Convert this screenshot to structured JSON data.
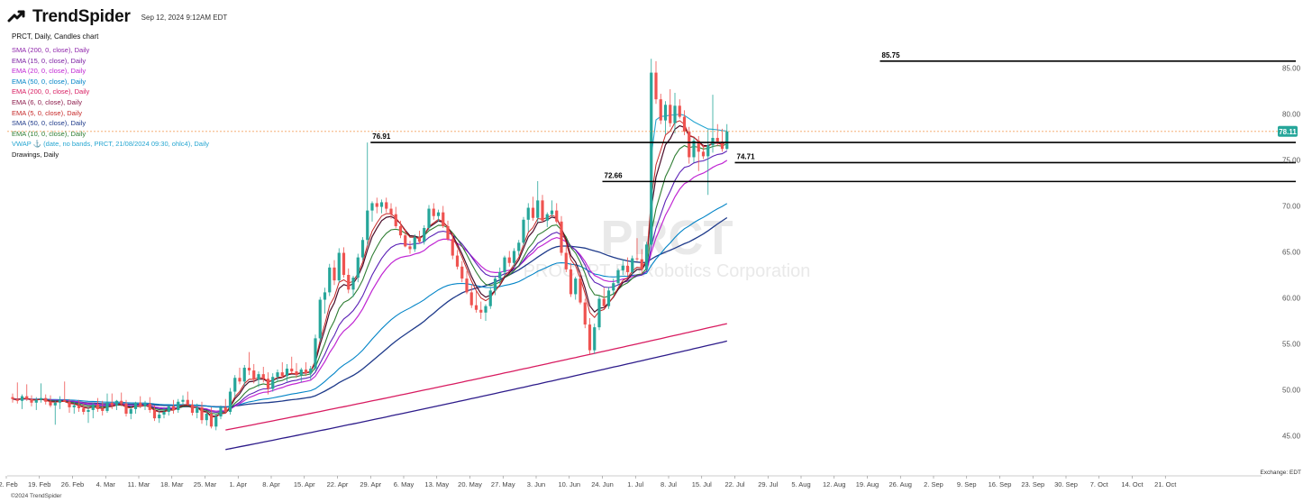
{
  "header": {
    "brand": "TrendSpider",
    "timestamp": "Sep 12, 2024 9:12AM EDT",
    "symbol_line": "PRCT, Daily, Candles chart",
    "drawings_label": "Drawings, Daily",
    "copyright": "©2024 TrendSpider",
    "exchange": "Exchange: EDT"
  },
  "watermark": {
    "ticker": "PRCT",
    "company": "PROCEPT BioRobotics Corporation"
  },
  "indicators": [
    {
      "label": "SMA (200, 0, close), Daily",
      "color": "#8e24aa"
    },
    {
      "label": "EMA (15, 0, close), Daily",
      "color": "#7b1fa2"
    },
    {
      "label": "EMA (20, 0, close), Daily",
      "color": "#c026d3"
    },
    {
      "label": "EMA (50, 0, close), Daily",
      "color": "#0284c7"
    },
    {
      "label": "EMA (200, 0, close), Daily",
      "color": "#d81b60"
    },
    {
      "label": "EMA (6, 0, close), Daily",
      "color": "#8b1a4a"
    },
    {
      "label": "EMA (5, 0, close), Daily",
      "color": "#c62828"
    },
    {
      "label": "SMA (50, 0, close), Daily",
      "color": "#1e3a8a"
    },
    {
      "label": "EMA (10, 0, close), Daily",
      "color": "#2e7d32"
    },
    {
      "label": "VWAP ⚓ (date, no bands, PRCT, 21/08/2024 09:30, ohlc4), Daily",
      "color": "#26a6d1"
    }
  ],
  "chart_data": {
    "type": "candlestick",
    "y_ticks": [
      45,
      50,
      55,
      60,
      65,
      70,
      75,
      80,
      85
    ],
    "y_tick_labels": [
      "45.00",
      "50.00",
      "55.00",
      "60.00",
      "65.00",
      "70.00",
      "75.00",
      "80.00",
      "85.00"
    ],
    "x_ticks": [
      "12. Feb",
      "19. Feb",
      "26. Feb",
      "4. Mar",
      "11. Mar",
      "18. Mar",
      "25. Mar",
      "1. Apr",
      "8. Apr",
      "15. Apr",
      "22. Apr",
      "29. Apr",
      "6. May",
      "13. May",
      "20. May",
      "27. May",
      "3. Jun",
      "10. Jun",
      "24. Jun",
      "1. Jul",
      "8. Jul",
      "15. Jul",
      "22. Jul",
      "29. Jul",
      "5. Aug",
      "12. Aug",
      "19. Aug",
      "26. Aug",
      "2. Sep",
      "9. Sep",
      "16. Sep",
      "23. Sep",
      "30. Sep",
      "7. Oct",
      "14. Oct",
      "21. Oct"
    ],
    "horizontal_levels": [
      {
        "label": "85.75",
        "value": 85.75,
        "from": "19. Aug"
      },
      {
        "label": "76.91",
        "value": 76.91,
        "from": "29. Apr"
      },
      {
        "label": "74.71",
        "value": 74.71,
        "from": "22. Jul"
      },
      {
        "label": "72.66",
        "value": 72.66,
        "from": "24. Jun"
      }
    ],
    "last_price": {
      "label": "78.11",
      "value": 78.11,
      "color": "#26a69a"
    },
    "candles": [
      [
        49.2,
        49.6,
        48.6,
        49.0
      ],
      [
        49.0,
        50.8,
        48.5,
        48.8
      ],
      [
        48.8,
        49.5,
        47.9,
        49.3
      ],
      [
        49.3,
        50.6,
        48.8,
        49.0
      ],
      [
        49.0,
        49.4,
        48.2,
        48.6
      ],
      [
        48.6,
        49.2,
        47.8,
        48.9
      ],
      [
        48.9,
        50.7,
        48.6,
        49.1
      ],
      [
        49.1,
        49.5,
        48.4,
        48.7
      ],
      [
        48.7,
        49.4,
        48.1,
        48.3
      ],
      [
        48.3,
        48.8,
        46.2,
        48.6
      ],
      [
        48.6,
        49.3,
        47.9,
        48.9
      ],
      [
        48.9,
        50.9,
        48.7,
        48.7
      ],
      [
        48.7,
        49.0,
        47.5,
        48.1
      ],
      [
        48.1,
        48.7,
        47.4,
        48.3
      ],
      [
        48.3,
        48.9,
        47.6,
        48.0
      ],
      [
        48.0,
        48.5,
        47.3,
        47.6
      ],
      [
        47.6,
        48.1,
        46.4,
        47.8
      ],
      [
        47.8,
        48.6,
        46.9,
        48.4
      ],
      [
        48.4,
        49.1,
        47.6,
        47.9
      ],
      [
        47.9,
        48.8,
        47.2,
        47.7
      ],
      [
        47.7,
        49.6,
        47.5,
        48.6
      ],
      [
        48.6,
        49.6,
        47.9,
        48.3
      ],
      [
        48.3,
        48.9,
        47.8,
        48.8
      ],
      [
        48.8,
        49.7,
        48.2,
        48.5
      ],
      [
        48.5,
        48.9,
        47.1,
        47.4
      ],
      [
        47.4,
        48.3,
        46.8,
        47.9
      ],
      [
        47.9,
        48.7,
        47.4,
        48.6
      ],
      [
        48.6,
        49.3,
        48.0,
        48.2
      ],
      [
        48.2,
        48.8,
        47.8,
        48.5
      ],
      [
        48.5,
        49.2,
        47.5,
        47.8
      ],
      [
        47.8,
        48.3,
        46.6,
        46.9
      ],
      [
        46.9,
        47.7,
        46.4,
        47.3
      ],
      [
        47.3,
        48.1,
        46.9,
        47.6
      ],
      [
        47.6,
        48.3,
        47.2,
        48.2
      ],
      [
        48.2,
        48.9,
        47.4,
        47.8
      ],
      [
        47.8,
        49.0,
        47.5,
        48.7
      ],
      [
        48.7,
        49.4,
        48.3,
        48.9
      ],
      [
        48.9,
        49.8,
        48.3,
        48.4
      ],
      [
        48.4,
        48.9,
        47.2,
        47.5
      ],
      [
        47.5,
        48.5,
        46.9,
        48.1
      ],
      [
        48.1,
        48.7,
        46.3,
        46.7
      ],
      [
        46.7,
        47.6,
        46.1,
        47.4
      ],
      [
        47.4,
        48.1,
        45.8,
        46.0
      ],
      [
        46.0,
        47.4,
        45.6,
        47.1
      ],
      [
        47.1,
        48.3,
        46.8,
        48.1
      ],
      [
        48.1,
        49.0,
        47.4,
        47.6
      ],
      [
        47.6,
        50.2,
        47.3,
        49.8
      ],
      [
        49.8,
        51.6,
        49.2,
        51.3
      ],
      [
        51.3,
        52.4,
        50.6,
        50.9
      ],
      [
        50.9,
        52.7,
        50.4,
        52.4
      ],
      [
        52.4,
        54.1,
        51.6,
        52.1
      ],
      [
        52.1,
        52.8,
        50.7,
        51.1
      ],
      [
        51.1,
        52.0,
        50.3,
        51.7
      ],
      [
        51.7,
        52.5,
        50.8,
        51.2
      ],
      [
        51.2,
        51.9,
        49.5,
        50.1
      ],
      [
        50.1,
        51.8,
        49.8,
        51.4
      ],
      [
        51.4,
        52.2,
        50.9,
        51.9
      ],
      [
        51.9,
        53.0,
        51.3,
        51.5
      ],
      [
        51.5,
        52.8,
        50.9,
        52.3
      ],
      [
        52.3,
        53.6,
        51.8,
        52.0
      ],
      [
        52.0,
        52.9,
        51.3,
        51.6
      ],
      [
        51.6,
        52.4,
        50.8,
        52.2
      ],
      [
        52.2,
        53.0,
        51.5,
        51.8
      ],
      [
        51.8,
        52.6,
        51.1,
        52.3
      ],
      [
        52.3,
        56.0,
        52.0,
        55.6
      ],
      [
        55.6,
        60.1,
        55.2,
        59.8
      ],
      [
        59.8,
        61.1,
        58.3,
        60.6
      ],
      [
        60.6,
        63.7,
        60.2,
        63.3
      ],
      [
        63.3,
        64.1,
        61.4,
        61.9
      ],
      [
        61.9,
        65.4,
        61.7,
        64.9
      ],
      [
        64.9,
        65.5,
        62.2,
        62.5
      ],
      [
        62.5,
        63.2,
        60.5,
        60.9
      ],
      [
        60.9,
        62.4,
        60.1,
        62.2
      ],
      [
        62.2,
        64.8,
        61.7,
        64.4
      ],
      [
        64.4,
        66.6,
        64.1,
        66.3
      ],
      [
        66.3,
        76.9,
        65.7,
        69.5
      ],
      [
        69.5,
        70.5,
        68.3,
        70.3
      ],
      [
        70.3,
        70.9,
        69.2,
        69.9
      ],
      [
        69.9,
        70.7,
        69.2,
        70.4
      ],
      [
        70.4,
        70.9,
        69.3,
        69.7
      ],
      [
        69.7,
        70.3,
        68.6,
        69.1
      ],
      [
        69.1,
        69.9,
        67.6,
        67.8
      ],
      [
        67.8,
        68.4,
        66.5,
        66.8
      ],
      [
        66.8,
        67.5,
        65.5,
        65.6
      ],
      [
        65.6,
        66.2,
        64.8,
        65.3
      ],
      [
        65.3,
        66.9,
        65.0,
        66.6
      ],
      [
        66.6,
        67.3,
        65.9,
        66.1
      ],
      [
        66.1,
        67.9,
        65.8,
        67.6
      ],
      [
        67.6,
        70.1,
        67.3,
        69.7
      ],
      [
        69.7,
        70.3,
        68.5,
        68.9
      ],
      [
        68.9,
        69.6,
        68.3,
        69.3
      ],
      [
        69.3,
        70.0,
        67.6,
        67.8
      ],
      [
        67.8,
        68.4,
        66.2,
        66.4
      ],
      [
        66.4,
        67.1,
        64.2,
        64.6
      ],
      [
        64.6,
        65.2,
        63.1,
        63.4
      ],
      [
        63.4,
        64.0,
        61.7,
        62.1
      ],
      [
        62.1,
        62.9,
        60.4,
        60.6
      ],
      [
        60.6,
        61.4,
        58.9,
        59.2
      ],
      [
        59.2,
        60.8,
        58.4,
        58.7
      ],
      [
        58.7,
        59.6,
        57.7,
        58.4
      ],
      [
        58.4,
        59.3,
        57.5,
        59.1
      ],
      [
        59.1,
        61.1,
        58.8,
        60.8
      ],
      [
        60.8,
        62.4,
        60.3,
        62.1
      ],
      [
        62.1,
        63.3,
        61.5,
        62.8
      ],
      [
        62.8,
        64.6,
        62.3,
        64.4
      ],
      [
        64.4,
        65.1,
        63.4,
        63.8
      ],
      [
        63.8,
        65.4,
        63.3,
        65.1
      ],
      [
        65.1,
        66.3,
        64.6,
        66.0
      ],
      [
        66.0,
        68.8,
        65.7,
        68.5
      ],
      [
        68.5,
        70.3,
        67.2,
        69.8
      ],
      [
        69.8,
        71.0,
        68.4,
        68.7
      ],
      [
        68.7,
        72.7,
        68.2,
        70.6
      ],
      [
        70.6,
        71.2,
        68.2,
        68.4
      ],
      [
        68.4,
        69.3,
        67.7,
        69.1
      ],
      [
        69.1,
        70.6,
        68.8,
        69.5
      ],
      [
        69.5,
        70.3,
        68.1,
        68.3
      ],
      [
        68.3,
        68.9,
        64.6,
        64.9
      ],
      [
        64.9,
        65.6,
        62.8,
        63.1
      ],
      [
        63.1,
        63.8,
        60.1,
        60.4
      ],
      [
        60.4,
        62.3,
        59.8,
        62.1
      ],
      [
        62.1,
        62.8,
        59.3,
        59.5
      ],
      [
        59.5,
        59.9,
        56.7,
        57.1
      ],
      [
        57.1,
        57.8,
        53.9,
        54.3
      ],
      [
        54.3,
        57.2,
        53.9,
        56.8
      ],
      [
        56.8,
        60.2,
        56.5,
        59.9
      ],
      [
        59.9,
        61.1,
        58.7,
        59.1
      ],
      [
        59.1,
        61.2,
        58.8,
        60.8
      ],
      [
        60.8,
        62.1,
        60.3,
        61.6
      ],
      [
        61.6,
        63.2,
        61.3,
        63.0
      ],
      [
        63.0,
        64.2,
        62.5,
        63.5
      ],
      [
        63.5,
        64.4,
        62.4,
        62.8
      ],
      [
        62.8,
        64.6,
        62.6,
        64.3
      ],
      [
        64.3,
        66.5,
        64.0,
        64.2
      ],
      [
        64.2,
        65.3,
        62.6,
        63.1
      ],
      [
        63.1,
        66.1,
        62.9,
        65.8
      ],
      [
        65.8,
        86.0,
        65.6,
        84.5
      ],
      [
        84.5,
        85.75,
        81.1,
        81.6
      ],
      [
        81.6,
        82.2,
        78.9,
        79.3
      ],
      [
        79.3,
        81.4,
        77.8,
        81.0
      ],
      [
        81.0,
        82.7,
        78.6,
        79.0
      ],
      [
        79.0,
        82.3,
        77.9,
        80.9
      ],
      [
        80.9,
        81.6,
        79.5,
        79.7
      ],
      [
        79.7,
        80.4,
        77.7,
        78.1
      ],
      [
        78.1,
        78.6,
        74.6,
        75.3
      ],
      [
        75.3,
        77.4,
        74.7,
        77.1
      ],
      [
        77.1,
        77.6,
        73.8,
        75.9
      ],
      [
        75.9,
        76.7,
        75.1,
        75.4
      ],
      [
        75.4,
        78.3,
        71.2,
        76.6
      ],
      [
        76.6,
        82.1,
        75.8,
        77.4
      ],
      [
        77.4,
        78.9,
        76.5,
        77.0
      ],
      [
        77.0,
        78.4,
        75.9,
        76.2
      ],
      [
        76.2,
        78.9,
        76.1,
        78.1
      ]
    ]
  }
}
